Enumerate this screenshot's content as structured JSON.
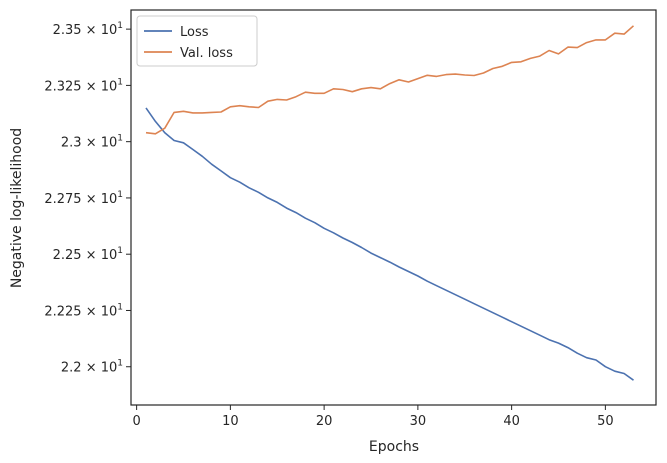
{
  "chart_data": {
    "type": "line",
    "xlabel": "Epochs",
    "ylabel": "Negative log-likelihood",
    "xlim": [
      -0.6,
      55.4
    ],
    "ylim": [
      21.83,
      23.585
    ],
    "x_ticks": [
      0,
      10,
      20,
      30,
      40,
      50
    ],
    "y_ticks": [
      {
        "value": 22.0,
        "mantissa": "2.2"
      },
      {
        "value": 22.25,
        "mantissa": "2.225"
      },
      {
        "value": 22.5,
        "mantissa": "2.25"
      },
      {
        "value": 22.75,
        "mantissa": "2.275"
      },
      {
        "value": 23.0,
        "mantissa": "2.3"
      },
      {
        "value": 23.25,
        "mantissa": "2.325"
      },
      {
        "value": 23.5,
        "mantissa": "2.35"
      }
    ],
    "y_tick_suffix": {
      "times": "×",
      "base": "10",
      "exponent": "1"
    },
    "grid": false,
    "legend_position": "top-left",
    "x": [
      1,
      2,
      3,
      4,
      5,
      6,
      7,
      8,
      9,
      10,
      11,
      12,
      13,
      14,
      15,
      16,
      17,
      18,
      19,
      20,
      21,
      22,
      23,
      24,
      25,
      26,
      27,
      28,
      29,
      30,
      31,
      32,
      33,
      34,
      35,
      36,
      37,
      38,
      39,
      40,
      41,
      42,
      43,
      44,
      45,
      46,
      47,
      48,
      49,
      50,
      51,
      52,
      53
    ],
    "series": [
      {
        "name": "Loss",
        "color": "#4c72b0",
        "values": [
          23.15,
          23.09,
          23.04,
          23.005,
          22.995,
          22.965,
          22.935,
          22.9,
          22.87,
          22.84,
          22.82,
          22.795,
          22.775,
          22.75,
          22.73,
          22.705,
          22.685,
          22.66,
          22.64,
          22.615,
          22.595,
          22.572,
          22.552,
          22.53,
          22.505,
          22.485,
          22.465,
          22.443,
          22.423,
          22.403,
          22.38,
          22.36,
          22.34,
          22.32,
          22.3,
          22.28,
          22.26,
          22.24,
          22.22,
          22.2,
          22.18,
          22.16,
          22.14,
          22.12,
          22.105,
          22.085,
          22.06,
          22.04,
          22.03,
          22.0,
          21.98,
          21.97,
          21.94
        ]
      },
      {
        "name": "Val. loss",
        "color": "#dd8452",
        "values": [
          23.04,
          23.035,
          23.06,
          23.13,
          23.135,
          23.128,
          23.128,
          23.13,
          23.132,
          23.155,
          23.16,
          23.155,
          23.152,
          23.18,
          23.188,
          23.185,
          23.2,
          23.22,
          23.215,
          23.215,
          23.235,
          23.232,
          23.222,
          23.235,
          23.24,
          23.235,
          23.258,
          23.275,
          23.265,
          23.28,
          23.295,
          23.29,
          23.298,
          23.3,
          23.296,
          23.294,
          23.305,
          23.325,
          23.335,
          23.352,
          23.355,
          23.37,
          23.38,
          23.405,
          23.39,
          23.42,
          23.418,
          23.44,
          23.452,
          23.452,
          23.482,
          23.478,
          23.515
        ]
      }
    ]
  }
}
